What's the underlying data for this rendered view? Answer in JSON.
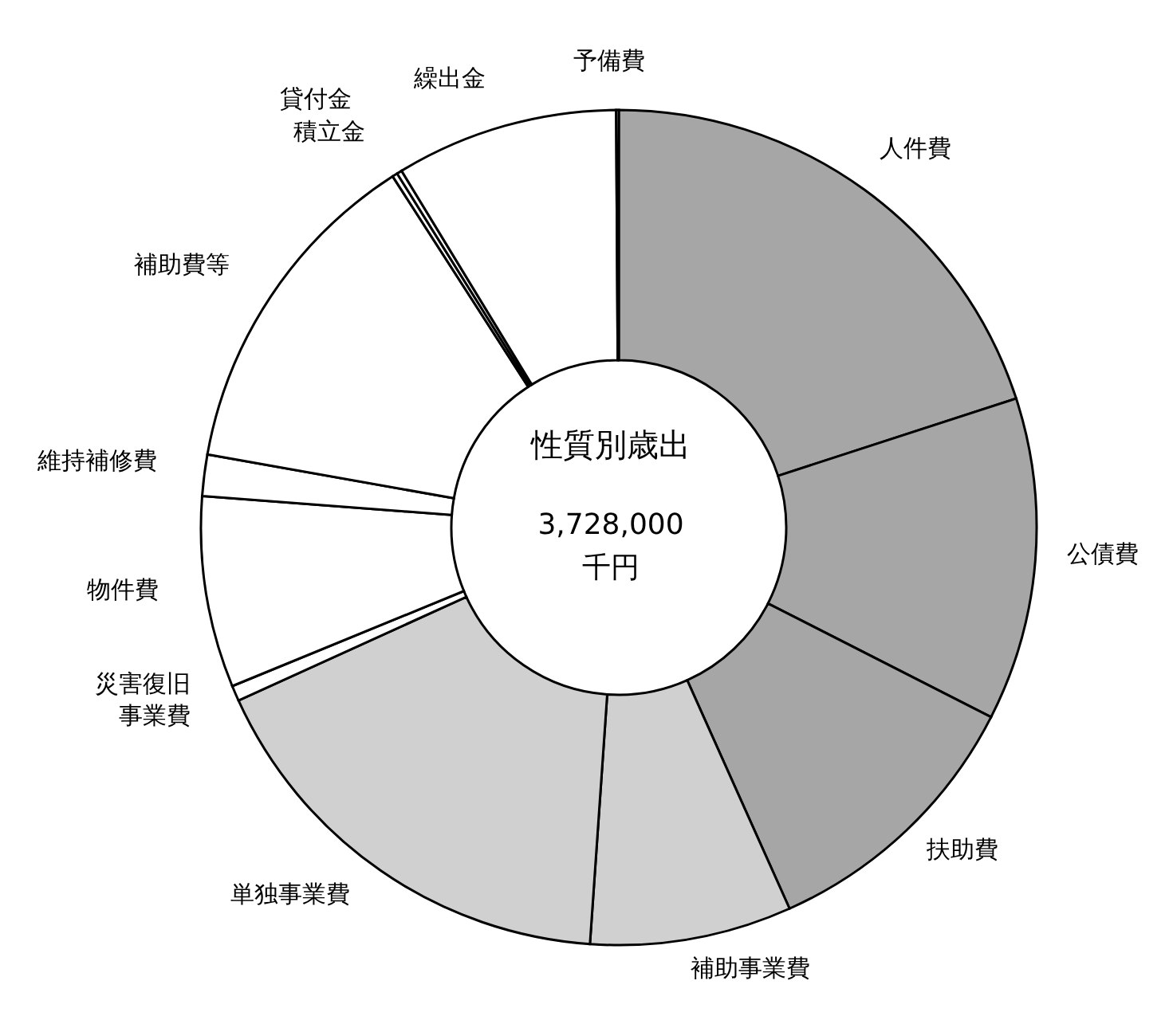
{
  "chart_data": {
    "type": "donut",
    "title": "性質別歳出",
    "annotations": [
      "3,728,000",
      "千円"
    ],
    "categories": [
      "人件費",
      "公債費",
      "扶助費",
      "補助事業費",
      "単独事業費",
      "災害復旧事業費",
      "物件費",
      "維持補修費",
      "補助費等",
      "積立金",
      "貸付金",
      "繰出金",
      "予備費"
    ],
    "values": [
      20.0,
      12.5,
      10.8,
      7.8,
      17.1,
      0.6,
      7.4,
      1.6,
      13.1,
      0.2,
      0.2,
      8.6,
      0.1
    ],
    "colors": [
      "#a6a6a6",
      "#a6a6a6",
      "#a6a6a6",
      "#d0d0d0",
      "#d0d0d0",
      "#ffffff",
      "#ffffff",
      "#ffffff",
      "#ffffff",
      "#ffffff",
      "#ffffff",
      "#ffffff",
      "#ffffff"
    ],
    "legend": false
  }
}
